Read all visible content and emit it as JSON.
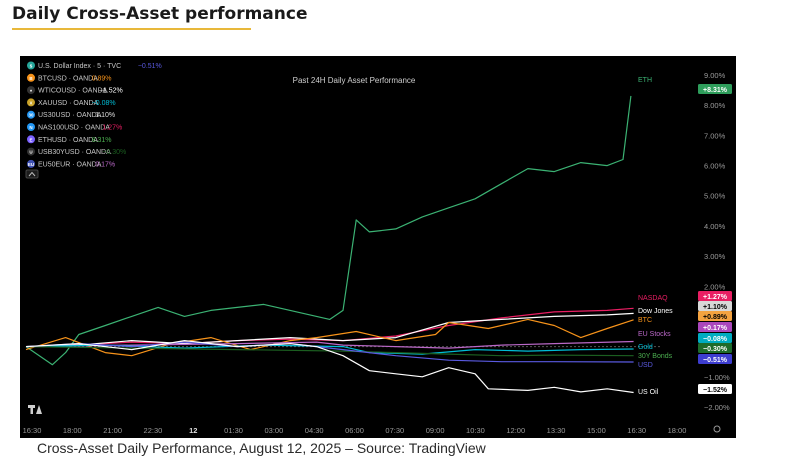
{
  "page_title": "Daily Cross-Asset performance",
  "caption": "Cross-Asset Daily Performance, August 12, 2025 – Source: TradingView",
  "legend_rows": [
    {
      "icon": "$",
      "color": "#26a69a",
      "name": "U.S. Dollar Index · 5 · TVC",
      "value": "−0.51%",
      "vcolor": "#5a5ae0"
    },
    {
      "icon": "B",
      "color": "#f7931a",
      "name": "BTCUSD · OANDA",
      "value": "0.89%",
      "vcolor": "#f7931a"
    },
    {
      "icon": "♦",
      "color": "#ffffff",
      "name": "WTICOUSD · OANDA",
      "value": "−1.52%",
      "vcolor": "#ffffff"
    },
    {
      "icon": "X",
      "color": "#c9a227",
      "name": "XAUUSD · OANDA",
      "value": "−0.08%",
      "vcolor": "#00bcd4"
    },
    {
      "icon": "30",
      "color": "#2196f3",
      "name": "US30USD · OANDA",
      "value": "1.10%",
      "vcolor": "#dddddd"
    },
    {
      "icon": "N",
      "color": "#2196f3",
      "name": "NAS100USD · OANDA",
      "value": "1.27%",
      "vcolor": "#e91e63"
    },
    {
      "icon": "E",
      "color": "#7b61ff",
      "name": "ETHUSD · OANDA",
      "value": "8.31%",
      "vcolor": "#4caf50"
    },
    {
      "icon": "U",
      "color": "#ffffff",
      "name": "USB30YUSD · OANDA",
      "value": "−0.30%",
      "vcolor": "#1b5e20"
    },
    {
      "icon": "EU",
      "color": "#3f51b5",
      "name": "EU50EUR · OANDA",
      "value": "0.17%",
      "vcolor": "#ba68c8"
    }
  ],
  "chart_data": {
    "type": "line",
    "title": "Past 24H Daily Asset Performance",
    "x_tick_labels": [
      "16:30",
      "18:00",
      "21:00",
      "22:30",
      "12",
      "01:30",
      "03:00",
      "04:30",
      "06:00",
      "07:30",
      "09:00",
      "10:30",
      "12:00",
      "13:30",
      "15:00",
      "16:30",
      "18:00"
    ],
    "y_tick_labels": [
      "9.00%",
      "8.00%",
      "7.00%",
      "6.00%",
      "5.00%",
      "4.00%",
      "3.00%",
      "2.00%",
      "1.00%",
      "0.00%",
      "−1.00%",
      "−2.00%"
    ],
    "ylim": [
      -2.3,
      9.3
    ],
    "x_hours": [
      0,
      24
    ],
    "series": [
      {
        "name": "ETH",
        "color": "#3bb273",
        "end_label": "+8.31%",
        "badge_color": "#2e9d5b",
        "badge_text": "#ffffff",
        "points": [
          [
            0,
            0
          ],
          [
            1,
            -0.6
          ],
          [
            1.5,
            -0.2
          ],
          [
            2,
            0.4
          ],
          [
            3,
            0.7
          ],
          [
            4,
            1.0
          ],
          [
            5,
            1.3
          ],
          [
            6,
            1.0
          ],
          [
            7,
            1.2
          ],
          [
            8,
            1.3
          ],
          [
            9,
            1.4
          ],
          [
            10,
            1.2
          ],
          [
            11,
            1.0
          ],
          [
            11.5,
            0.9
          ],
          [
            12,
            1.2
          ],
          [
            12.5,
            4.2
          ],
          [
            13,
            3.8
          ],
          [
            14,
            3.9
          ],
          [
            15,
            4.3
          ],
          [
            16,
            4.6
          ],
          [
            17,
            4.9
          ],
          [
            18,
            5.4
          ],
          [
            19,
            5.9
          ],
          [
            20,
            5.8
          ],
          [
            21,
            6.1
          ],
          [
            22,
            6.0
          ],
          [
            22.6,
            6.2
          ],
          [
            22.9,
            8.31
          ]
        ]
      },
      {
        "name": "NASDAQ",
        "color": "#e91e63",
        "end_label": "+1.27%",
        "badge_color": "#e91e63",
        "badge_text": "#ffffff",
        "points": [
          [
            0,
            0
          ],
          [
            2,
            0.05
          ],
          [
            4,
            0.15
          ],
          [
            6,
            0.1
          ],
          [
            8,
            0.2
          ],
          [
            10,
            0.25
          ],
          [
            12,
            0.2
          ],
          [
            14,
            0.35
          ],
          [
            16,
            0.7
          ],
          [
            18,
            0.95
          ],
          [
            20,
            1.15
          ],
          [
            22,
            1.2
          ],
          [
            23,
            1.27
          ]
        ]
      },
      {
        "name": "Dow Jones",
        "color": "#ffffff",
        "end_label": "+1.10%",
        "badge_color": "#d8d8d8",
        "badge_text": "#000000",
        "points": [
          [
            0,
            0
          ],
          [
            2,
            0.05
          ],
          [
            4,
            0.2
          ],
          [
            6,
            0.1
          ],
          [
            8,
            0.2
          ],
          [
            10,
            0.3
          ],
          [
            12,
            0.2
          ],
          [
            14,
            0.3
          ],
          [
            16,
            0.8
          ],
          [
            18,
            0.9
          ],
          [
            20,
            1.0
          ],
          [
            22,
            1.05
          ],
          [
            23,
            1.1
          ]
        ]
      },
      {
        "name": "BTC",
        "color": "#f7931a",
        "end_label": "+0.89%",
        "badge_color": "#f4a340",
        "badge_text": "#000000",
        "points": [
          [
            0,
            -0.1
          ],
          [
            1.5,
            0.3
          ],
          [
            3,
            -0.2
          ],
          [
            4,
            -0.3
          ],
          [
            5.5,
            0.1
          ],
          [
            7,
            0.3
          ],
          [
            8.5,
            -0.1
          ],
          [
            10,
            0.2
          ],
          [
            11,
            0.3
          ],
          [
            12.5,
            0.5
          ],
          [
            14,
            0.2
          ],
          [
            15.5,
            0.4
          ],
          [
            16,
            0.8
          ],
          [
            17.5,
            0.6
          ],
          [
            19,
            0.9
          ],
          [
            20,
            0.7
          ],
          [
            21,
            0.3
          ],
          [
            22,
            0.6
          ],
          [
            23,
            0.89
          ]
        ]
      },
      {
        "name": "EU Stocks",
        "color": "#ba68c8",
        "end_label": "+0.17%",
        "badge_color": "#ab47bc",
        "badge_text": "#ffffff",
        "points": [
          [
            0,
            0
          ],
          [
            4,
            0.05
          ],
          [
            8,
            0.1
          ],
          [
            11,
            0.15
          ],
          [
            12,
            0.05
          ],
          [
            14,
            0.0
          ],
          [
            16,
            -0.05
          ],
          [
            18,
            0.05
          ],
          [
            20,
            0.1
          ],
          [
            23,
            0.17
          ]
        ]
      },
      {
        "name": "Gold",
        "color": "#00bcd4",
        "end_label": "−0.08%",
        "badge_color": "#00acc1",
        "badge_text": "#ffffff",
        "points": [
          [
            0,
            0
          ],
          [
            3,
            0.05
          ],
          [
            6,
            -0.05
          ],
          [
            9,
            0.05
          ],
          [
            12,
            0.0
          ],
          [
            13,
            -0.2
          ],
          [
            15,
            -0.25
          ],
          [
            17,
            -0.1
          ],
          [
            19,
            -0.15
          ],
          [
            21,
            -0.1
          ],
          [
            23,
            -0.08
          ]
        ]
      },
      {
        "name": "30Y Bonds",
        "color": "#1b5e20",
        "end_label": "−0.30%",
        "badge_color": "#1e6b2a",
        "badge_text": "#ffffff",
        "points": [
          [
            0,
            0
          ],
          [
            4,
            -0.05
          ],
          [
            8,
            -0.1
          ],
          [
            12,
            -0.15
          ],
          [
            14,
            -0.2
          ],
          [
            16,
            -0.25
          ],
          [
            18,
            -0.3
          ],
          [
            20,
            -0.28
          ],
          [
            23,
            -0.3
          ]
        ]
      },
      {
        "name": "USD",
        "color": "#5a5ae0",
        "end_label": "−0.51%",
        "badge_color": "#3d3dcf",
        "badge_text": "#ffffff",
        "points": [
          [
            0,
            0
          ],
          [
            2,
            0.1
          ],
          [
            4,
            0.0
          ],
          [
            6,
            0.15
          ],
          [
            8,
            0.0
          ],
          [
            10,
            0.1
          ],
          [
            12,
            -0.1
          ],
          [
            14,
            -0.3
          ],
          [
            16,
            -0.45
          ],
          [
            18,
            -0.5
          ],
          [
            20,
            -0.5
          ],
          [
            23,
            -0.51
          ]
        ]
      },
      {
        "name": "US Oil",
        "color": "#ffffff",
        "end_label": "−1.52%",
        "badge_color": "#ffffff",
        "badge_text": "#000000",
        "points": [
          [
            0,
            0
          ],
          [
            2,
            0.1
          ],
          [
            4,
            -0.1
          ],
          [
            6,
            0.2
          ],
          [
            8,
            0.0
          ],
          [
            10,
            0.1
          ],
          [
            11,
            0.0
          ],
          [
            12,
            -0.3
          ],
          [
            13,
            -0.8
          ],
          [
            14,
            -0.9
          ],
          [
            15,
            -1.0
          ],
          [
            16,
            -0.7
          ],
          [
            17,
            -0.9
          ],
          [
            17.5,
            -1.4
          ],
          [
            19,
            -1.45
          ],
          [
            20,
            -1.35
          ],
          [
            21,
            -1.5
          ],
          [
            22,
            -1.4
          ],
          [
            23,
            -1.52
          ]
        ]
      }
    ]
  }
}
